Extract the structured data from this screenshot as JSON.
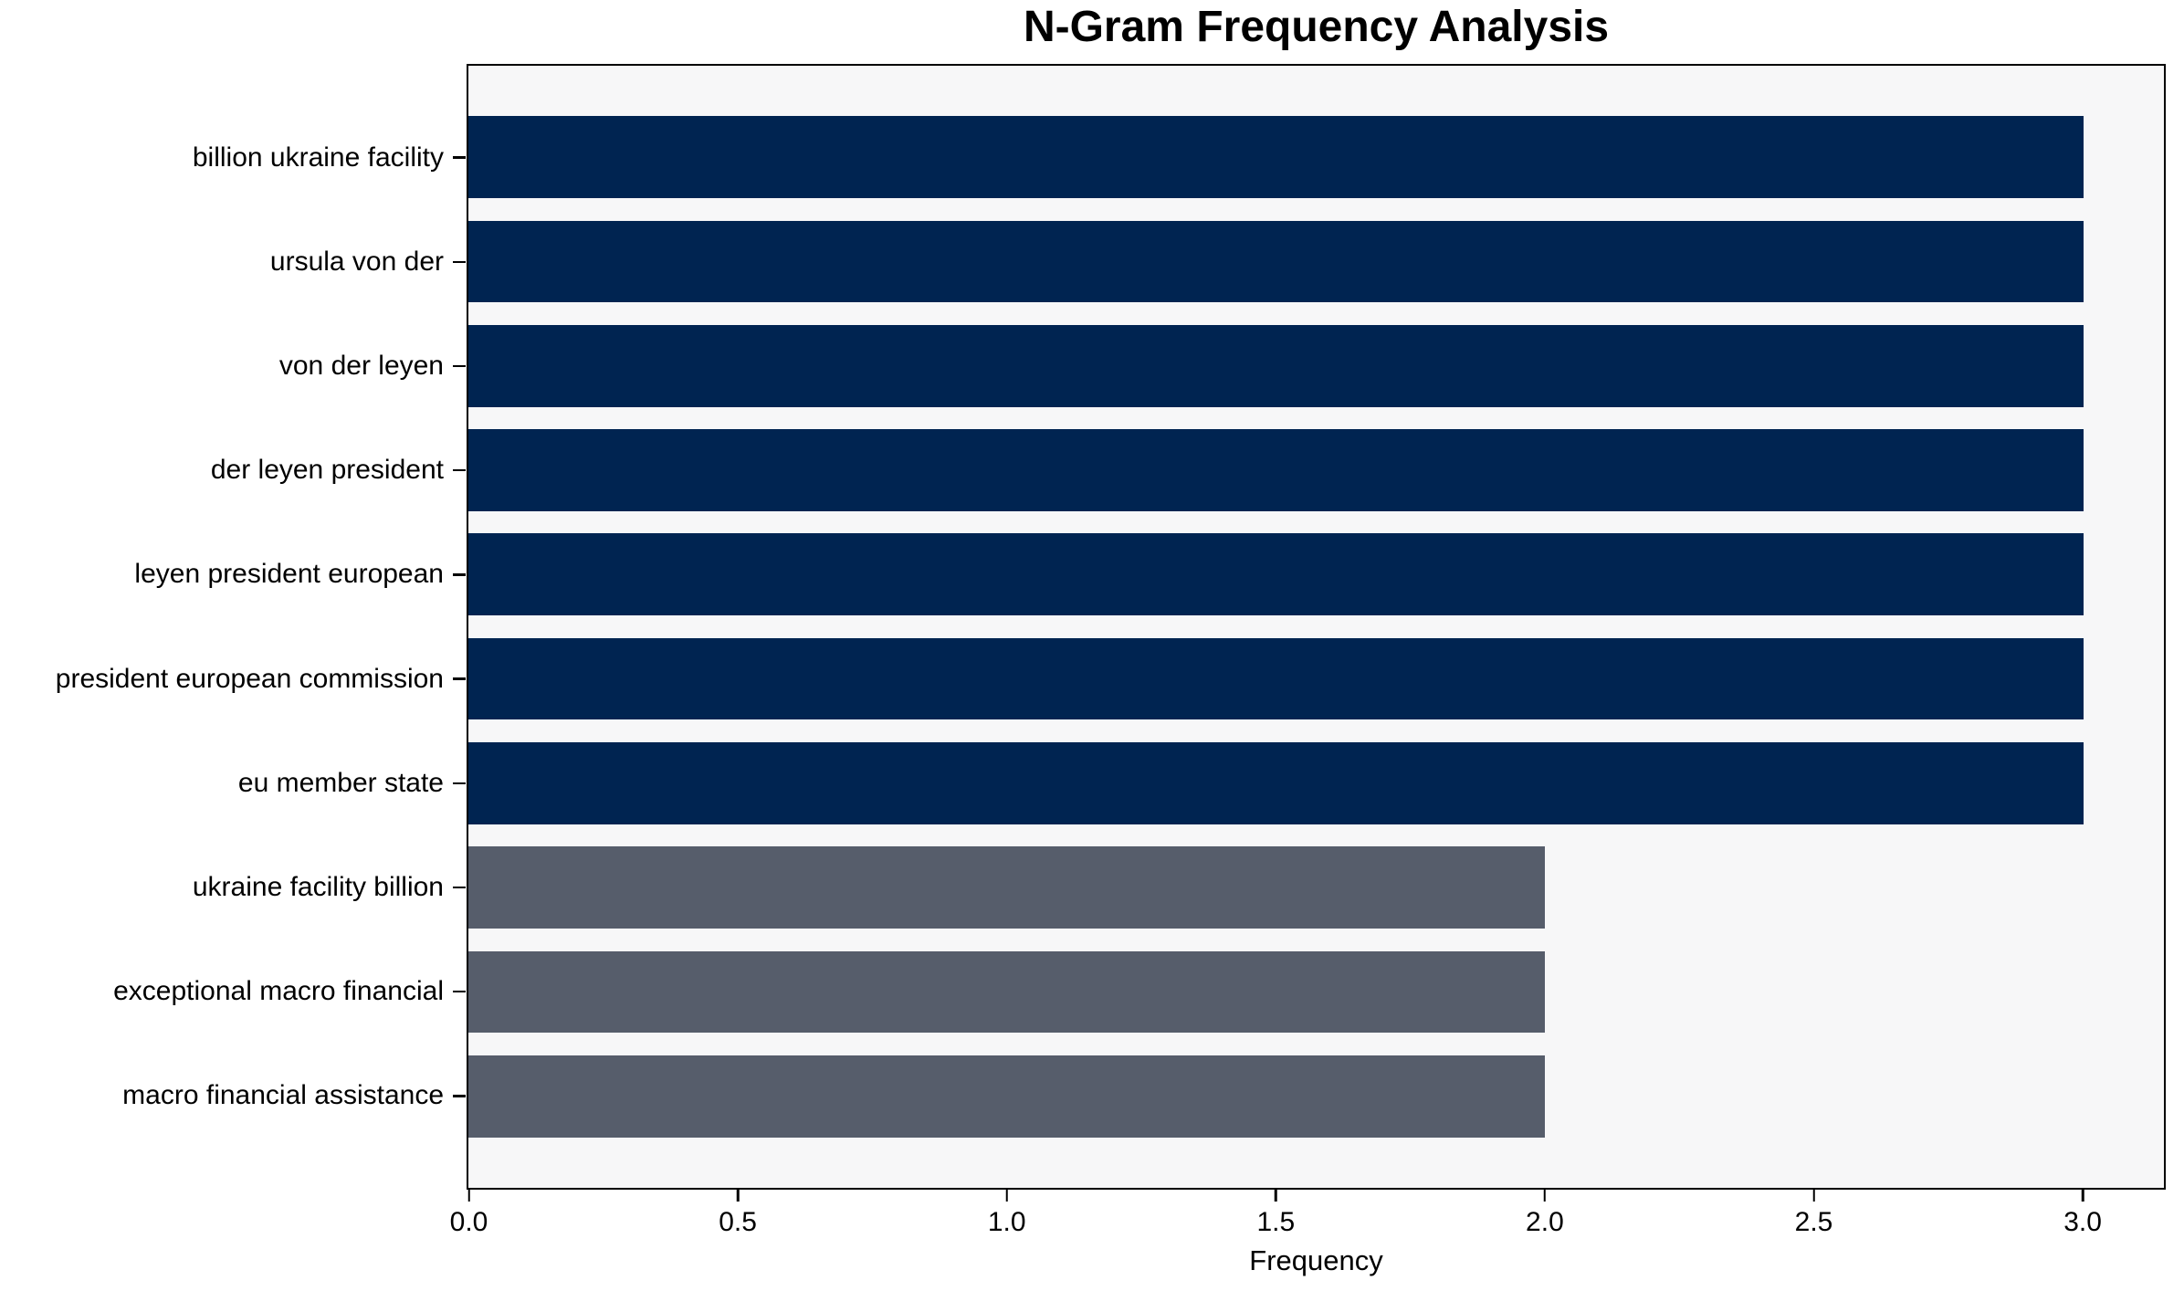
{
  "figure": {
    "background": "#ffffff",
    "plot_background": "#f7f7f8",
    "spine_color": "#000000",
    "text_color": "#000000"
  },
  "chart_data": {
    "type": "bar",
    "orientation": "horizontal",
    "title": "N-Gram Frequency Analysis",
    "xlabel": "Frequency",
    "ylabel": "",
    "categories": [
      "billion ukraine facility",
      "ursula von der",
      "von der leyen",
      "der leyen president",
      "leyen president european",
      "president european commission",
      "eu member state",
      "ukraine facility billion",
      "exceptional macro financial",
      "macro financial assistance"
    ],
    "values": [
      3,
      3,
      3,
      3,
      3,
      3,
      3,
      2,
      2,
      2
    ],
    "bar_colors": [
      "#002451",
      "#002451",
      "#002451",
      "#002451",
      "#002451",
      "#002451",
      "#002451",
      "#565d6b",
      "#565d6b",
      "#565d6b"
    ],
    "colors": {
      "high_frequency": "#002451",
      "low_frequency": "#565d6b"
    },
    "xlim": [
      0,
      3.15
    ],
    "xticks": [
      0,
      0.5,
      1,
      1.5,
      2,
      2.5,
      3
    ],
    "xtick_labels": [
      "0.0",
      "0.5",
      "1.0",
      "1.5",
      "2.0",
      "2.5",
      "3.0"
    ],
    "grid": false,
    "legend": false,
    "bar_height_fraction": 0.785
  }
}
